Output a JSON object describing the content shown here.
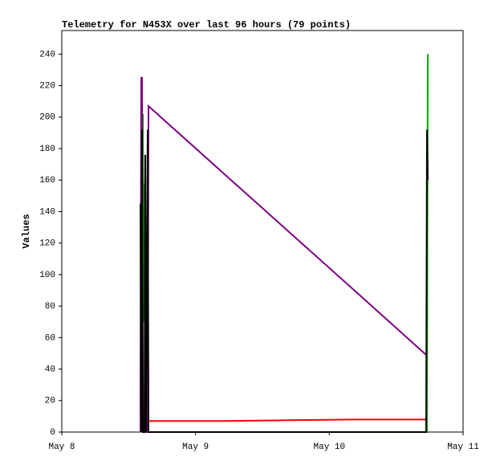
{
  "chart_data": {
    "type": "line",
    "title": "Telemetry for N453X over last 96 hours (79 points)",
    "y_label": "Values",
    "x": [
      0.588,
      0.594,
      0.6,
      0.606,
      0.612,
      0.618,
      0.624,
      0.63,
      0.642,
      0.648,
      1.2,
      2.2,
      2.724,
      2.73,
      2.736
    ],
    "xlim": [
      0,
      3
    ],
    "xticks": [
      {
        "value": 0,
        "label": "May 8"
      },
      {
        "value": 1,
        "label": "May 9"
      },
      {
        "value": 2,
        "label": "May 10"
      },
      {
        "value": 3,
        "label": "May 11"
      }
    ],
    "ylim": [
      0,
      255
    ],
    "yticks": [
      0,
      20,
      40,
      60,
      80,
      100,
      120,
      140,
      160,
      180,
      200,
      220,
      240
    ],
    "series": [
      {
        "color": "#00aa00",
        "values": [
          0,
          225,
          0,
          202,
          70,
          158,
          0,
          0,
          0,
          0,
          0,
          0,
          0,
          0,
          240
        ]
      },
      {
        "color": "#800080",
        "values": [
          0,
          225,
          225,
          0,
          0,
          0,
          0,
          0,
          0,
          207,
          165,
          89,
          49,
          null,
          null
        ]
      },
      {
        "color": "#ff0000",
        "values": [
          null,
          null,
          null,
          null,
          null,
          null,
          null,
          null,
          7,
          7,
          7,
          8,
          8,
          null,
          null
        ]
      },
      {
        "color": "#000000",
        "values": [
          145,
          0,
          192,
          0,
          0,
          0,
          176,
          0,
          192,
          0,
          0,
          0,
          0,
          192,
          160
        ]
      }
    ]
  }
}
